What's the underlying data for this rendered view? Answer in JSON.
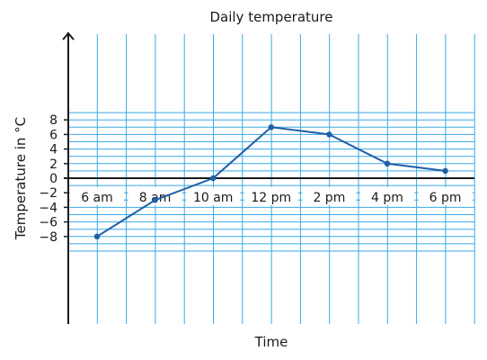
{
  "chart_data": {
    "type": "line",
    "title": "Daily temperature",
    "xlabel": "Time",
    "ylabel": "Temperature in °C",
    "categories": [
      "6 am",
      "8 am",
      "10 am",
      "12 pm",
      "2 pm",
      "4 pm",
      "6 pm"
    ],
    "series": [
      {
        "values": [
          -8,
          -3,
          0,
          7,
          6,
          2,
          1
        ]
      }
    ],
    "ylim": [
      -10,
      10
    ],
    "yticks": [
      -8,
      -6,
      -4,
      -2,
      0,
      2,
      4,
      6,
      8
    ],
    "ytick_labels": [
      "−8",
      "−6",
      "−4",
      "−2",
      "0",
      "2",
      "4",
      "6",
      "8"
    ],
    "grid": true,
    "colors": {
      "grid": "#3aa9e6",
      "line": "#1f5fa6",
      "axis": "#1a1a1a"
    }
  }
}
